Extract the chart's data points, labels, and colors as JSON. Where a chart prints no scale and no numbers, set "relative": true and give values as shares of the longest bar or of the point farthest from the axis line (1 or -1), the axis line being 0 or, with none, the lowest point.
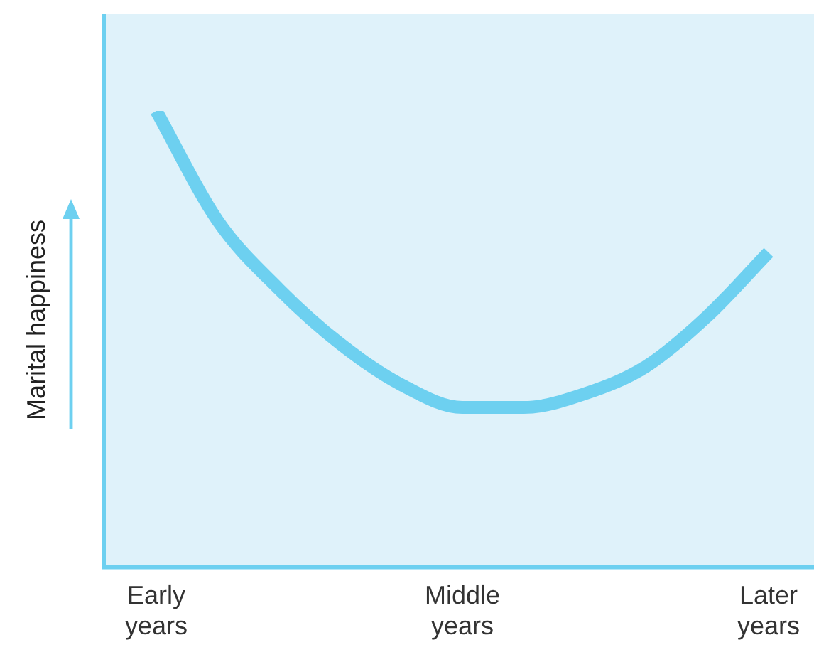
{
  "chart_data": {
    "type": "line",
    "relative": true,
    "ylabel": "Marital happiness",
    "categories": [
      "Early years",
      null,
      null,
      null,
      null,
      "Middle years",
      null,
      null,
      null,
      null,
      "Later years"
    ],
    "series": [
      {
        "color": "#6dd0f0",
        "values": [
          1.0,
          0.76,
          0.61,
          0.49,
          0.4,
          0.35,
          0.35,
          0.38,
          0.44,
          0.55,
          0.69
        ]
      }
    ],
    "legend": false,
    "grid": false,
    "marker": "none",
    "line_style": "solid"
  }
}
